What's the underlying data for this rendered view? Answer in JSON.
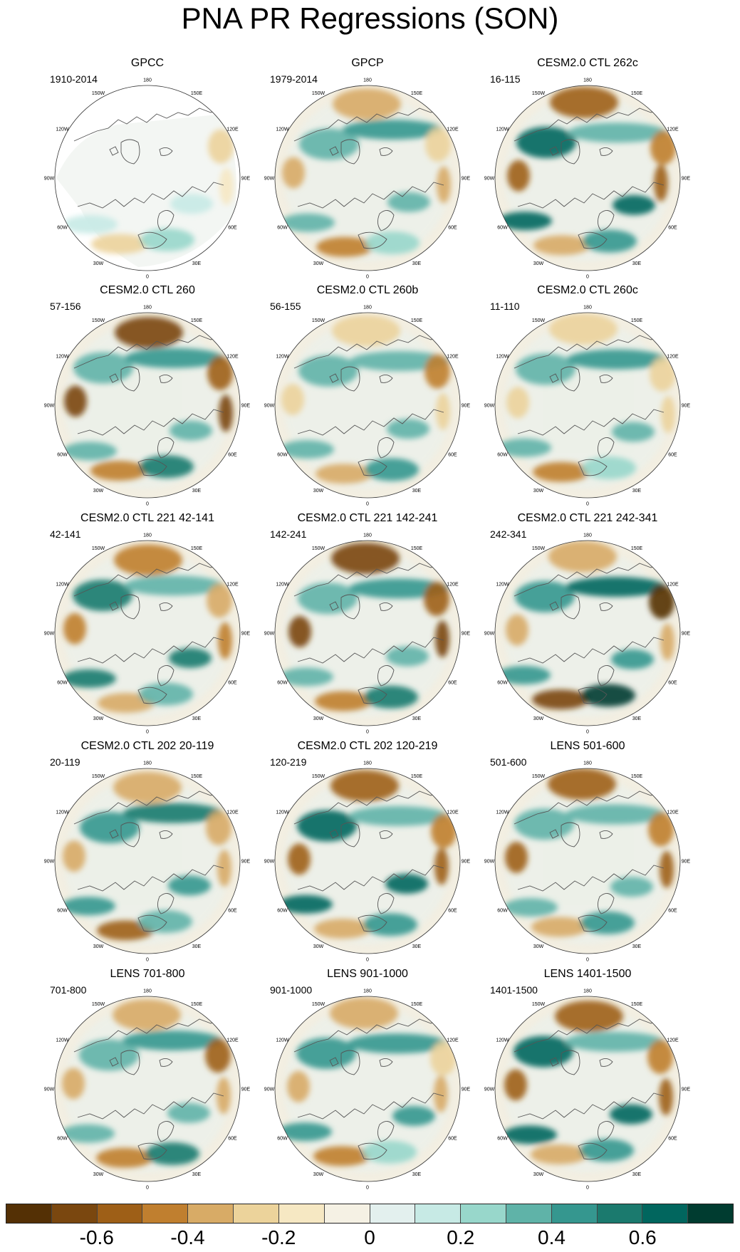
{
  "figure_title": "PNA PR Regressions (SON)",
  "longitude_labels": [
    "180",
    "150E",
    "120E",
    "90E",
    "60E",
    "30E",
    "0",
    "30W",
    "60W",
    "90W",
    "120W",
    "150W"
  ],
  "panels": [
    {
      "title": "GPCC",
      "period": "1910-2014",
      "missing_land_data": true,
      "intensity": 0.35
    },
    {
      "title": "GPCP",
      "period": "1979-2014",
      "intensity": 0.6
    },
    {
      "title": "CESM2.0 CTL 262c",
      "period": "16-115",
      "intensity": 0.85
    },
    {
      "title": "CESM2.0 CTL 260",
      "period": "57-156",
      "intensity": 0.8
    },
    {
      "title": "CESM2.0 CTL 260b",
      "period": "56-155",
      "intensity": 0.6
    },
    {
      "title": "CESM2.0 CTL 260c",
      "period": "11-110",
      "intensity": 0.55
    },
    {
      "title": "CESM2.0 CTL 221 42-141",
      "period": "42-141",
      "intensity": 0.75
    },
    {
      "title": "CESM2.0 CTL 221 142-241",
      "period": "142-241",
      "intensity": 0.85
    },
    {
      "title": "CESM2.0 CTL 221 242-341",
      "period": "242-341",
      "intensity": 0.95
    },
    {
      "title": "CESM2.0 CTL 202 20-119",
      "period": "20-119",
      "intensity": 0.75
    },
    {
      "title": "CESM2.0 CTL 202 120-219",
      "period": "120-219",
      "intensity": 0.8
    },
    {
      "title": "LENS 501-600",
      "period": "501-600",
      "intensity": 0.75
    },
    {
      "title": "LENS 701-800",
      "period": "701-800",
      "intensity": 0.75
    },
    {
      "title": "LENS 901-1000",
      "period": "901-1000",
      "intensity": 0.65
    },
    {
      "title": "LENS 1401-1500",
      "period": "1401-1500",
      "intensity": 0.9
    }
  ],
  "colorbar": {
    "colors": [
      "#543005",
      "#7a470f",
      "#9e5f17",
      "#c07f2f",
      "#d8ab66",
      "#ecd39b",
      "#f6e8c3",
      "#f5f1e4",
      "#e3f0ee",
      "#c7eae5",
      "#98d7cb",
      "#5fb3a8",
      "#35978f",
      "#1b7a6e",
      "#01665e",
      "#003c30"
    ],
    "tick_labels": [
      "-0.6",
      "-0.4",
      "-0.2",
      "0",
      "0.2",
      "0.4",
      "0.6"
    ]
  }
}
